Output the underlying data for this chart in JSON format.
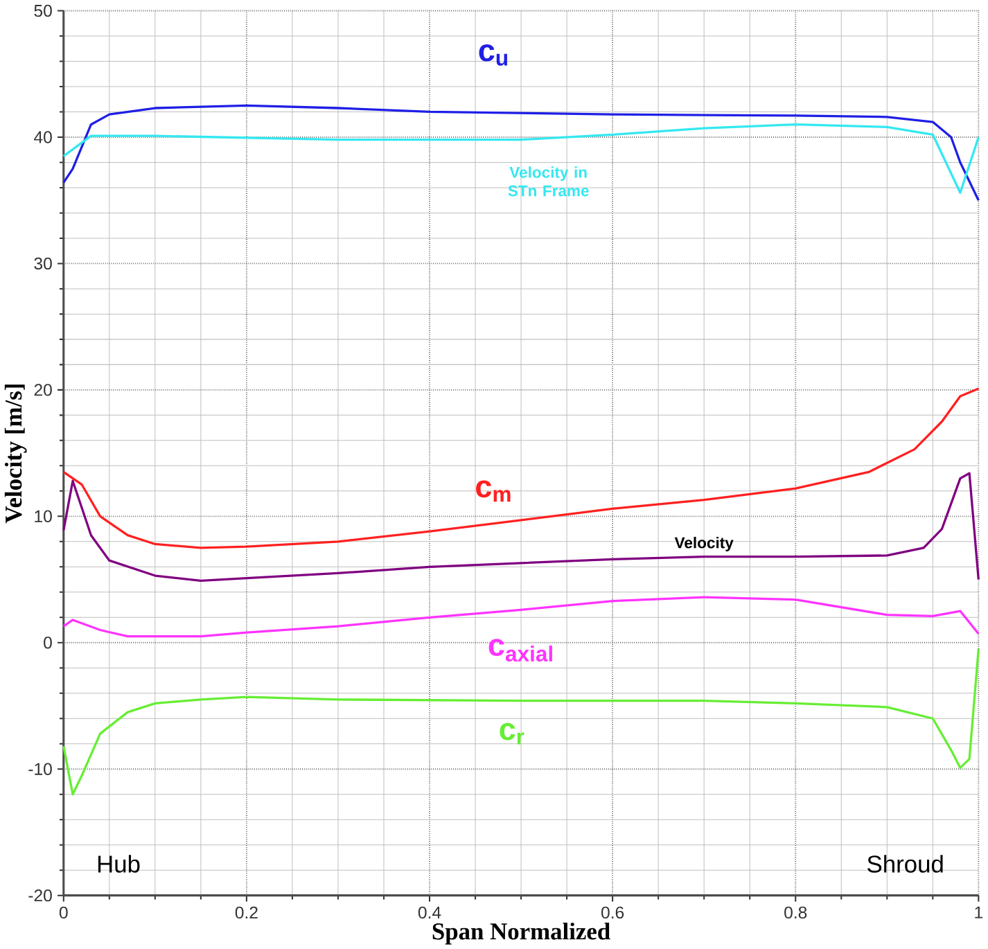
{
  "chart_data": {
    "type": "line",
    "xlabel": "Span Normalized",
    "ylabel": "Velocity [m/s]",
    "xlim": [
      0,
      1
    ],
    "ylim": [
      -20,
      50
    ],
    "xticks": [
      0,
      0.2,
      0.4,
      0.6,
      0.8,
      1
    ],
    "yticks": [
      -20,
      -10,
      0,
      10,
      20,
      30,
      40,
      50
    ],
    "grid": true,
    "legend": false,
    "marker": "none",
    "line_style": "solid",
    "annotations": [
      "Hub",
      "Shroud"
    ],
    "series": [
      {
        "name": "c$_{u}$",
        "color": "#1f1fe6",
        "x": [
          0,
          0.01,
          0.03,
          0.05,
          0.1,
          0.2,
          0.3,
          0.4,
          0.6,
          0.8,
          0.9,
          0.95,
          0.97,
          0.98,
          1
        ],
        "values": [
          36.4,
          37.5,
          41,
          41.8,
          42.3,
          42.5,
          42.3,
          42,
          41.8,
          41.7,
          41.6,
          41.2,
          40,
          38,
          35
        ]
      },
      {
        "name": "Velocity in STn Frame",
        "color": "#33e8f0",
        "x": [
          0,
          0.03,
          0.1,
          0.3,
          0.5,
          0.6,
          0.7,
          0.8,
          0.9,
          0.95,
          0.98,
          1
        ],
        "values": [
          38.5,
          40.1,
          40.1,
          39.8,
          39.8,
          40.2,
          40.7,
          41,
          40.8,
          40.2,
          35.6,
          40
        ]
      },
      {
        "name": "c$_{m}$",
        "color": "#ff2020",
        "x": [
          0,
          0.02,
          0.04,
          0.07,
          0.1,
          0.15,
          0.2,
          0.3,
          0.4,
          0.5,
          0.6,
          0.7,
          0.8,
          0.88,
          0.93,
          0.96,
          0.98,
          1
        ],
        "values": [
          13.5,
          12.5,
          10,
          8.5,
          7.8,
          7.5,
          7.6,
          8,
          8.8,
          9.7,
          10.6,
          11.3,
          12.2,
          13.5,
          15.3,
          17.5,
          19.5,
          20.1
        ]
      },
      {
        "name": "Velocity",
        "color": "#800080",
        "x": [
          0,
          0.01,
          0.03,
          0.05,
          0.1,
          0.15,
          0.2,
          0.3,
          0.4,
          0.5,
          0.6,
          0.7,
          0.8,
          0.9,
          0.94,
          0.96,
          0.98,
          0.99,
          1
        ],
        "values": [
          8.9,
          12.8,
          8.5,
          6.5,
          5.3,
          4.9,
          5.1,
          5.5,
          6,
          6.3,
          6.6,
          6.8,
          6.8,
          6.9,
          7.5,
          9,
          13,
          13.4,
          5
        ]
      },
      {
        "name": "c$_{axial}$",
        "color": "#ff33ff",
        "x": [
          0,
          0.01,
          0.04,
          0.07,
          0.15,
          0.2,
          0.3,
          0.4,
          0.5,
          0.6,
          0.7,
          0.8,
          0.9,
          0.95,
          0.98,
          1
        ],
        "values": [
          1.3,
          1.8,
          1,
          0.5,
          0.5,
          0.8,
          1.3,
          2,
          2.6,
          3.3,
          3.6,
          3.4,
          2.2,
          2.1,
          2.5,
          0.7
        ]
      },
      {
        "name": "c$_{r}$",
        "color": "#66ee33",
        "x": [
          0,
          0.01,
          0.02,
          0.04,
          0.07,
          0.1,
          0.15,
          0.2,
          0.3,
          0.5,
          0.7,
          0.8,
          0.9,
          0.95,
          0.97,
          0.98,
          0.99,
          1
        ],
        "values": [
          -8.2,
          -12,
          -10.5,
          -7.2,
          -5.5,
          -4.8,
          -4.5,
          -4.3,
          -4.5,
          -4.6,
          -4.6,
          -4.8,
          -5.1,
          -6,
          -8.5,
          -9.9,
          -9.2,
          -0.5
        ]
      }
    ]
  }
}
